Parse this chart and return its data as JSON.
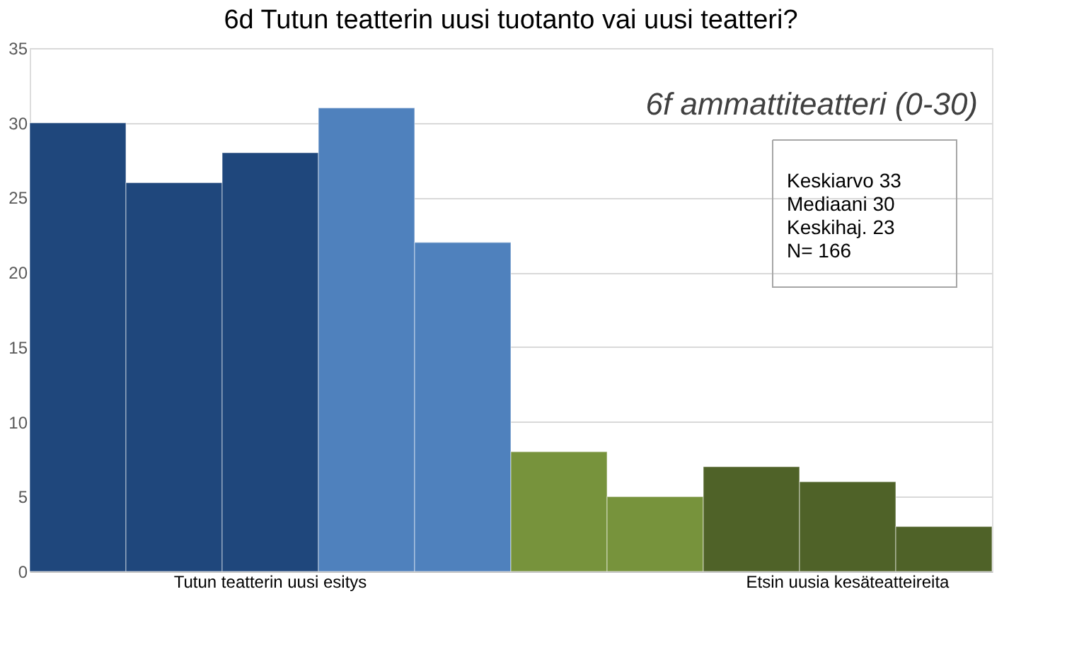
{
  "chart_data": {
    "type": "bar",
    "title": "6d Tutun teatterin uusi tuotanto vai uusi teatteri?",
    "categories": [
      null,
      null,
      "Tutun teatterin uusi esitys",
      null,
      null,
      null,
      null,
      null,
      "Etsin uusia kesäteatteireita",
      null
    ],
    "values": [
      30,
      26,
      28,
      31,
      22,
      8,
      5,
      7,
      6,
      3
    ],
    "colors": [
      "#1f477c",
      "#1f477c",
      "#1f477c",
      "#4f81bd",
      "#4f81bd",
      "#77933c",
      "#77933c",
      "#4f6228",
      "#4f6228",
      "#4f6228"
    ],
    "ylim": [
      0,
      35
    ],
    "yticks": [
      0,
      5,
      10,
      15,
      20,
      25,
      30,
      35
    ],
    "grid": "y",
    "annotations": [
      "6f ammattiteatteri (0-30)",
      "Keskiarvo 33",
      "Mediaani 30",
      "Keskihaj. 23",
      "N= 166"
    ]
  }
}
